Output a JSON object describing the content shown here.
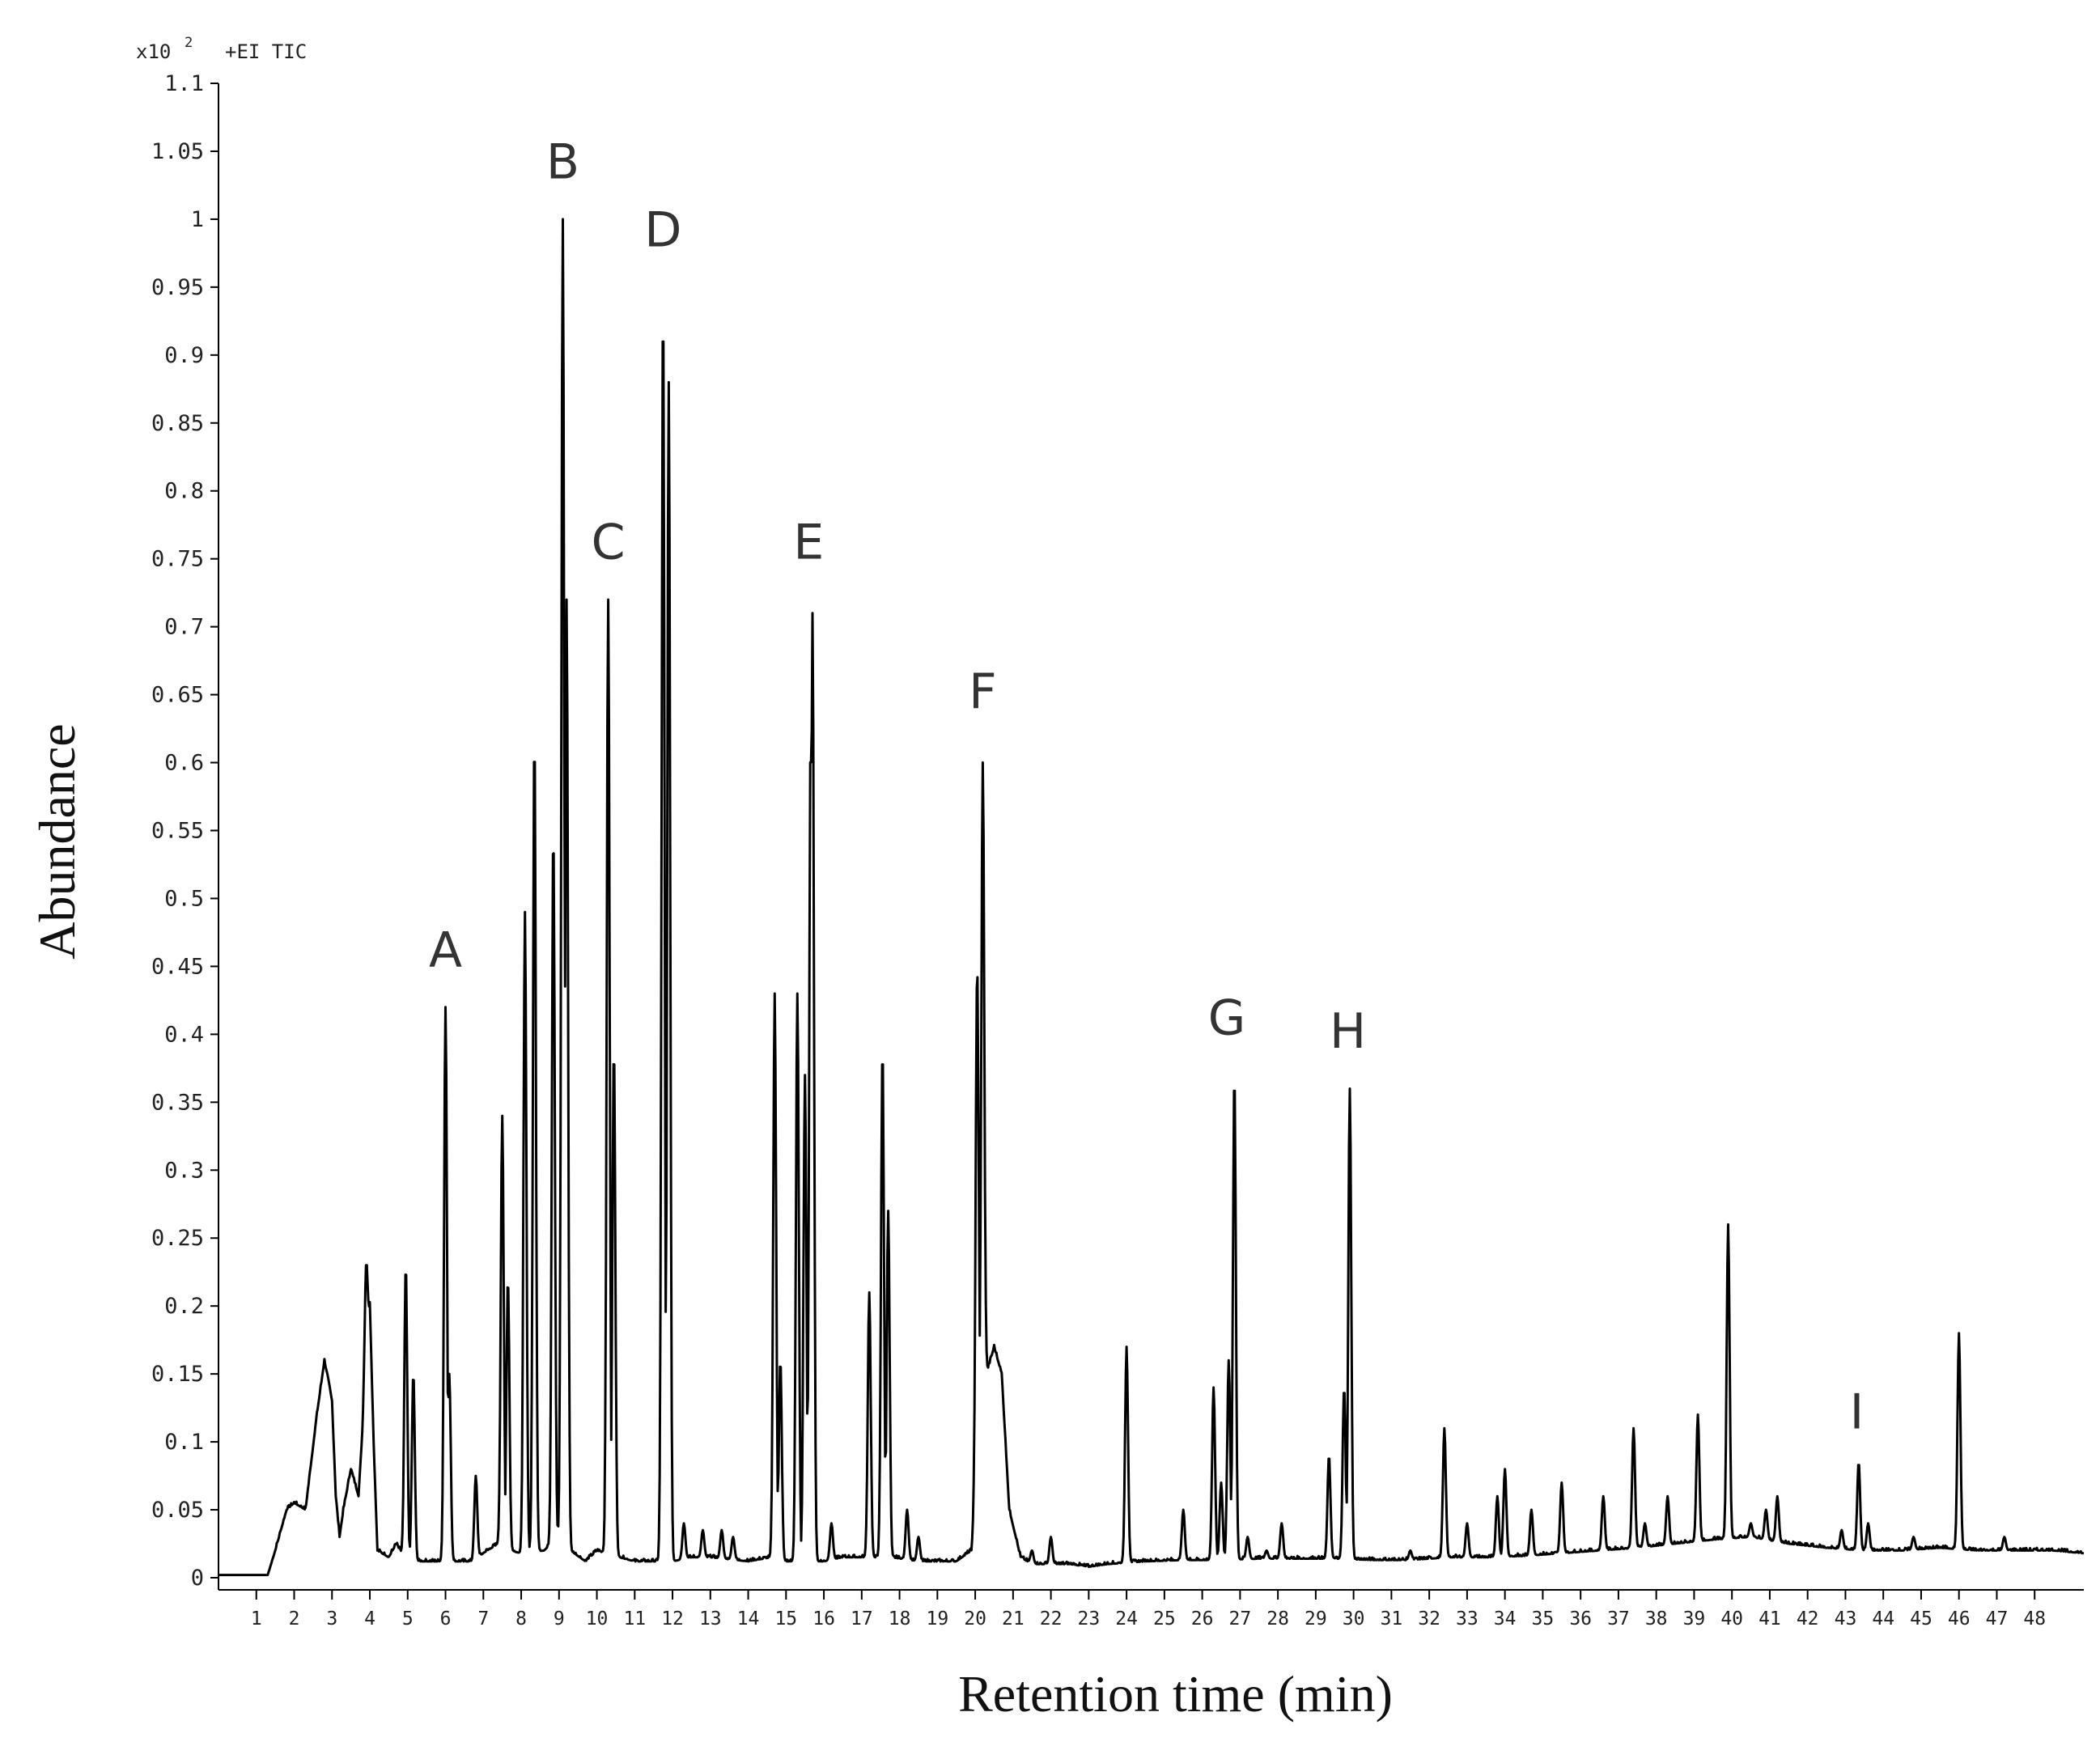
{
  "chart_data": {
    "type": "line",
    "title": "+EI TIC",
    "scale_base": "x10",
    "scale_exponent": "2",
    "xlabel": "Retention time (min)",
    "ylabel": "Abundance",
    "xlim": [
      0,
      49.3
    ],
    "ylim": [
      0,
      1.1
    ],
    "x_ticks": [
      1,
      2,
      3,
      4,
      5,
      6,
      7,
      8,
      9,
      10,
      11,
      12,
      13,
      14,
      15,
      16,
      17,
      18,
      19,
      20,
      21,
      22,
      23,
      24,
      25,
      26,
      27,
      28,
      29,
      30,
      31,
      32,
      33,
      34,
      35,
      36,
      37,
      38,
      39,
      40,
      41,
      42,
      43,
      44,
      45,
      46,
      47,
      48
    ],
    "y_ticks": [
      0,
      0.05,
      0.1,
      0.15,
      0.2,
      0.25,
      0.3,
      0.35,
      0.4,
      0.45,
      0.5,
      0.55,
      0.6,
      0.65,
      0.7,
      0.75,
      0.8,
      0.85,
      0.9,
      0.95,
      1,
      1.05,
      1.1
    ],
    "y_tick_labels": [
      "0",
      "0.05",
      "0.1",
      "0.15",
      "0.2",
      "0.25",
      "0.3",
      "0.35",
      "0.4",
      "0.45",
      "0.5",
      "0.55",
      "0.6",
      "0.65",
      "0.7",
      "0.75",
      "0.8",
      "0.85",
      "0.9",
      "0.95",
      "1",
      "1.05",
      "1.1"
    ],
    "baseline": [
      [
        0,
        0.002
      ],
      [
        1.3,
        0.002
      ],
      [
        1.5,
        0.02
      ],
      [
        1.8,
        0.05
      ],
      [
        2.0,
        0.055
      ],
      [
        2.3,
        0.05
      ],
      [
        2.6,
        0.12
      ],
      [
        2.8,
        0.16
      ],
      [
        3.0,
        0.13
      ],
      [
        3.1,
        0.06
      ],
      [
        3.2,
        0.03
      ],
      [
        3.3,
        0.05
      ],
      [
        3.5,
        0.08
      ],
      [
        3.7,
        0.06
      ],
      [
        3.9,
        0.15
      ],
      [
        4.0,
        0.2
      ],
      [
        4.1,
        0.1
      ],
      [
        4.2,
        0.02
      ],
      [
        4.5,
        0.015
      ],
      [
        4.7,
        0.025
      ],
      [
        4.9,
        0.015
      ],
      [
        5.2,
        0.012
      ],
      [
        5.5,
        0.012
      ],
      [
        6.3,
        0.012
      ],
      [
        6.7,
        0.012
      ],
      [
        7.1,
        0.02
      ],
      [
        7.4,
        0.025
      ],
      [
        7.7,
        0.02
      ],
      [
        8.0,
        0.018
      ],
      [
        8.6,
        0.02
      ],
      [
        9.0,
        0.03
      ],
      [
        9.3,
        0.02
      ],
      [
        9.7,
        0.012
      ],
      [
        10.0,
        0.02
      ],
      [
        10.6,
        0.015
      ],
      [
        11.0,
        0.012
      ],
      [
        11.6,
        0.012
      ],
      [
        12.0,
        0.012
      ],
      [
        12.5,
        0.015
      ],
      [
        13.0,
        0.015
      ],
      [
        14.0,
        0.012
      ],
      [
        14.6,
        0.015
      ],
      [
        15.0,
        0.012
      ],
      [
        16.0,
        0.012
      ],
      [
        16.5,
        0.015
      ],
      [
        17.0,
        0.015
      ],
      [
        17.8,
        0.015
      ],
      [
        18.5,
        0.012
      ],
      [
        19.5,
        0.012
      ],
      [
        19.9,
        0.02
      ],
      [
        20.1,
        0.1
      ],
      [
        20.3,
        0.15
      ],
      [
        20.5,
        0.17
      ],
      [
        20.7,
        0.15
      ],
      [
        20.9,
        0.05
      ],
      [
        21.2,
        0.015
      ],
      [
        21.5,
        0.01
      ],
      [
        22.5,
        0.01
      ],
      [
        23.0,
        0.008
      ],
      [
        23.5,
        0.01
      ],
      [
        24.5,
        0.012
      ],
      [
        25.5,
        0.013
      ],
      [
        26.5,
        0.013
      ],
      [
        27.5,
        0.014
      ],
      [
        28.5,
        0.014
      ],
      [
        29.5,
        0.014
      ],
      [
        30.5,
        0.013
      ],
      [
        31.5,
        0.013
      ],
      [
        32.5,
        0.015
      ],
      [
        33.5,
        0.015
      ],
      [
        34.5,
        0.016
      ],
      [
        35.5,
        0.018
      ],
      [
        36.5,
        0.02
      ],
      [
        37.5,
        0.022
      ],
      [
        38.5,
        0.025
      ],
      [
        39.5,
        0.028
      ],
      [
        40.5,
        0.03
      ],
      [
        41.5,
        0.025
      ],
      [
        42.5,
        0.022
      ],
      [
        43.5,
        0.02
      ],
      [
        44.5,
        0.02
      ],
      [
        45.5,
        0.022
      ],
      [
        46.5,
        0.02
      ],
      [
        47.5,
        0.02
      ],
      [
        48.5,
        0.02
      ],
      [
        49.3,
        0.018
      ]
    ],
    "peaks": [
      {
        "x": 3.9,
        "y": 0.23
      },
      {
        "x": 4.95,
        "y": 0.23
      },
      {
        "x": 5.15,
        "y": 0.15
      },
      {
        "x": 6.0,
        "y": 0.42,
        "label": "A"
      },
      {
        "x": 6.1,
        "y": 0.15
      },
      {
        "x": 6.8,
        "y": 0.075
      },
      {
        "x": 7.5,
        "y": 0.34
      },
      {
        "x": 7.65,
        "y": 0.22
      },
      {
        "x": 8.1,
        "y": 0.49
      },
      {
        "x": 8.35,
        "y": 0.62
      },
      {
        "x": 8.85,
        "y": 0.55
      },
      {
        "x": 9.1,
        "y": 1.0,
        "label": "B"
      },
      {
        "x": 9.2,
        "y": 0.72
      },
      {
        "x": 10.3,
        "y": 0.72,
        "label": "C"
      },
      {
        "x": 10.45,
        "y": 0.39
      },
      {
        "x": 11.75,
        "y": 0.94,
        "label": "D"
      },
      {
        "x": 11.9,
        "y": 0.88
      },
      {
        "x": 12.3,
        "y": 0.04
      },
      {
        "x": 12.8,
        "y": 0.035
      },
      {
        "x": 13.3,
        "y": 0.035
      },
      {
        "x": 13.6,
        "y": 0.03
      },
      {
        "x": 14.7,
        "y": 0.43
      },
      {
        "x": 14.85,
        "y": 0.16
      },
      {
        "x": 15.3,
        "y": 0.43
      },
      {
        "x": 15.5,
        "y": 0.37
      },
      {
        "x": 15.7,
        "y": 0.71,
        "label": "E"
      },
      {
        "x": 15.65,
        "y": 0.62
      },
      {
        "x": 16.2,
        "y": 0.04
      },
      {
        "x": 17.2,
        "y": 0.21
      },
      {
        "x": 17.55,
        "y": 0.39
      },
      {
        "x": 17.7,
        "y": 0.27
      },
      {
        "x": 18.2,
        "y": 0.05
      },
      {
        "x": 18.5,
        "y": 0.03
      },
      {
        "x": 20.05,
        "y": 0.45
      },
      {
        "x": 20.2,
        "y": 0.6,
        "label": "F"
      },
      {
        "x": 21.5,
        "y": 0.02
      },
      {
        "x": 22.0,
        "y": 0.03
      },
      {
        "x": 24.0,
        "y": 0.17
      },
      {
        "x": 25.5,
        "y": 0.05
      },
      {
        "x": 26.3,
        "y": 0.14
      },
      {
        "x": 26.5,
        "y": 0.07
      },
      {
        "x": 26.7,
        "y": 0.16
      },
      {
        "x": 26.85,
        "y": 0.37,
        "label": "G"
      },
      {
        "x": 27.2,
        "y": 0.03
      },
      {
        "x": 27.7,
        "y": 0.02
      },
      {
        "x": 28.1,
        "y": 0.04
      },
      {
        "x": 29.35,
        "y": 0.09
      },
      {
        "x": 29.75,
        "y": 0.14
      },
      {
        "x": 29.9,
        "y": 0.36,
        "label": "H"
      },
      {
        "x": 31.5,
        "y": 0.02
      },
      {
        "x": 32.4,
        "y": 0.11
      },
      {
        "x": 33.0,
        "y": 0.04
      },
      {
        "x": 33.8,
        "y": 0.06
      },
      {
        "x": 34.0,
        "y": 0.08
      },
      {
        "x": 34.7,
        "y": 0.05
      },
      {
        "x": 35.5,
        "y": 0.07
      },
      {
        "x": 36.6,
        "y": 0.06
      },
      {
        "x": 37.4,
        "y": 0.11
      },
      {
        "x": 37.7,
        "y": 0.04
      },
      {
        "x": 38.3,
        "y": 0.06
      },
      {
        "x": 39.1,
        "y": 0.12
      },
      {
        "x": 39.9,
        "y": 0.26
      },
      {
        "x": 40.5,
        "y": 0.04
      },
      {
        "x": 40.9,
        "y": 0.05
      },
      {
        "x": 41.2,
        "y": 0.06
      },
      {
        "x": 42.9,
        "y": 0.035
      },
      {
        "x": 43.35,
        "y": 0.085,
        "label": "I"
      },
      {
        "x": 43.6,
        "y": 0.04
      },
      {
        "x": 44.8,
        "y": 0.03
      },
      {
        "x": 46.0,
        "y": 0.18
      },
      {
        "x": 47.2,
        "y": 0.03
      }
    ],
    "peak_labels": [
      {
        "text": "A",
        "x": 6.0,
        "y": 0.45
      },
      {
        "text": "B",
        "x": 9.1,
        "y": 1.03
      },
      {
        "text": "C",
        "x": 10.3,
        "y": 0.75
      },
      {
        "text": "D",
        "x": 11.75,
        "y": 0.98
      },
      {
        "text": "E",
        "x": 15.6,
        "y": 0.75
      },
      {
        "text": "F",
        "x": 20.2,
        "y": 0.64
      },
      {
        "text": "G",
        "x": 26.65,
        "y": 0.4
      },
      {
        "text": "H",
        "x": 29.85,
        "y": 0.39
      },
      {
        "text": "I",
        "x": 43.3,
        "y": 0.11
      }
    ],
    "grid": false,
    "legend": "none",
    "line_color": "#000000"
  }
}
